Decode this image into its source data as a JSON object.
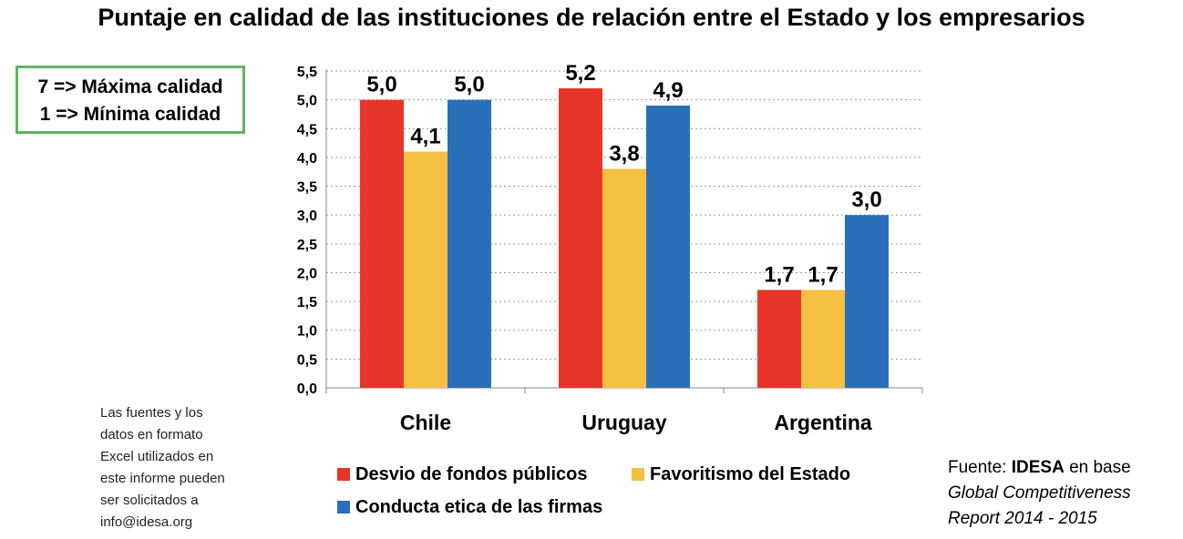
{
  "title": "Puntaje en calidad de las instituciones de relación entre el Estado y los empresarios",
  "scale_note": {
    "line1": "7 => Máxima calidad",
    "line2": "1 => Mínima calidad"
  },
  "files_note": {
    "lines": [
      "Las fuentes y los",
      "datos en formato",
      "Excel utilizados en",
      "este informe pueden",
      "ser solicitados a",
      "info@idesa.org"
    ]
  },
  "source": {
    "prefix": "Fuente: ",
    "org": "IDESA",
    "suffix": " en base",
    "line2": "Global Competitiveness",
    "line3": "Report 2014 - 2015"
  },
  "colors": {
    "series1": "#e8352a",
    "series2": "#f5bf42",
    "series3": "#2a70b8"
  },
  "chart_data": {
    "type": "bar",
    "title": "Puntaje en calidad de las instituciones de relación entre el Estado y los empresarios",
    "xlabel": "",
    "ylabel": "",
    "categories": [
      "Chile",
      "Uruguay",
      "Argentina"
    ],
    "series": [
      {
        "name": "Desvio de fondos públicos",
        "values": [
          5.0,
          5.2,
          1.7
        ],
        "labels": [
          "5,0",
          "5,2",
          "1,7"
        ]
      },
      {
        "name": "Favoritismo del Estado",
        "values": [
          4.1,
          3.8,
          1.7
        ],
        "labels": [
          "4,1",
          "3,8",
          "1,7"
        ]
      },
      {
        "name": "Conducta etica de las firmas",
        "values": [
          5.0,
          4.9,
          3.0
        ],
        "labels": [
          "5,0",
          "4,9",
          "3,0"
        ]
      }
    ],
    "ylim": [
      0,
      5.5
    ],
    "yticks": [
      "0,0",
      "0,5",
      "1,0",
      "1,5",
      "2,0",
      "2,5",
      "3,0",
      "3,5",
      "4,0",
      "4,5",
      "5,0",
      "5,5"
    ],
    "grid": true,
    "legend_position": "bottom"
  }
}
